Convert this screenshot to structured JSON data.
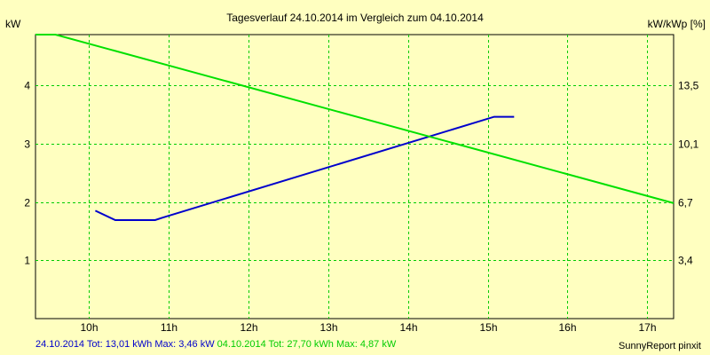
{
  "chart_data": {
    "type": "line",
    "title": "Tagesverlauf 24.10.2014 im Vergleich zum 04.10.2014",
    "ylabel_left": "kW",
    "ylabel_right": "kW/kWp [%]",
    "xlim": [
      9.33,
      17.33
    ],
    "ylim": [
      0,
      4.87
    ],
    "x_ticks": [
      {
        "value": 10,
        "label": "10h"
      },
      {
        "value": 11,
        "label": "11h"
      },
      {
        "value": 12,
        "label": "12h"
      },
      {
        "value": 13,
        "label": "13h"
      },
      {
        "value": 14,
        "label": "14h"
      },
      {
        "value": 15,
        "label": "15h"
      },
      {
        "value": 16,
        "label": "16h"
      },
      {
        "value": 17,
        "label": "17h"
      }
    ],
    "y_ticks_left": [
      {
        "value": 1,
        "label": "1"
      },
      {
        "value": 2,
        "label": "2"
      },
      {
        "value": 3,
        "label": "3"
      },
      {
        "value": 4,
        "label": "4"
      }
    ],
    "y_ticks_right": [
      {
        "value": 1,
        "label": "3,4"
      },
      {
        "value": 2,
        "label": "6,7"
      },
      {
        "value": 3,
        "label": "10,1"
      },
      {
        "value": 4,
        "label": "13,5"
      }
    ],
    "grid": true,
    "series": [
      {
        "name": "24.10.2014",
        "color": "#0000cc",
        "points": [
          [
            10.08,
            1.85
          ],
          [
            10.33,
            1.69
          ],
          [
            10.83,
            1.69
          ],
          [
            10.92,
            1.73
          ],
          [
            15.08,
            3.46
          ],
          [
            15.33,
            3.46
          ]
        ]
      },
      {
        "name": "04.10.2014",
        "color": "#00e000",
        "points": [
          [
            9.33,
            4.87
          ],
          [
            9.58,
            4.87
          ],
          [
            17.33,
            1.98
          ]
        ]
      }
    ]
  },
  "footer": {
    "series1_text": "24.10.2014 Tot: 13,01 kWh Max: 3,46 kW",
    "series2_text": "04.10.2014 Tot: 27,70 kWh Max: 4,87 kW",
    "credit": "SunnyReport pinxit"
  }
}
